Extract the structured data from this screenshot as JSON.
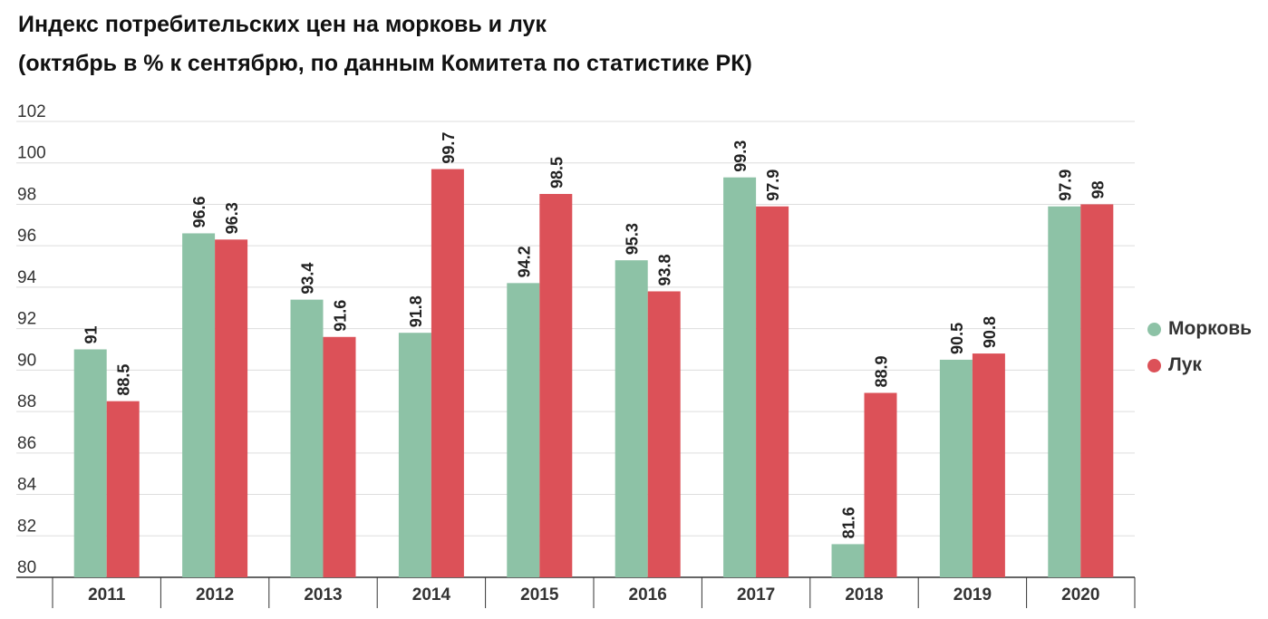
{
  "title_line1": "Индекс потребительских цен на морковь и лук",
  "title_line2": "(октябрь в % к сентябрю, по данным Комитета по статистике РК)",
  "colors": {
    "carrot": "#8dc2a6",
    "onion": "#dc5158",
    "grid": "#dddddd",
    "axis": "#333333"
  },
  "chart_data": {
    "type": "bar",
    "categories": [
      "2011",
      "2012",
      "2013",
      "2014",
      "2015",
      "2016",
      "2017",
      "2018",
      "2019",
      "2020"
    ],
    "series": [
      {
        "name": "Морковь",
        "values": [
          91,
          96.6,
          93.4,
          91.8,
          94.2,
          95.3,
          99.3,
          81.6,
          90.5,
          97.9
        ]
      },
      {
        "name": "Лук",
        "values": [
          88.5,
          96.3,
          91.6,
          99.7,
          98.5,
          93.8,
          97.9,
          88.9,
          90.8,
          98
        ]
      }
    ],
    "yticks": [
      80,
      82,
      84,
      86,
      88,
      90,
      92,
      94,
      96,
      98,
      100,
      102
    ],
    "ylim": [
      80,
      102
    ],
    "grid": true,
    "legend_position": "right"
  }
}
